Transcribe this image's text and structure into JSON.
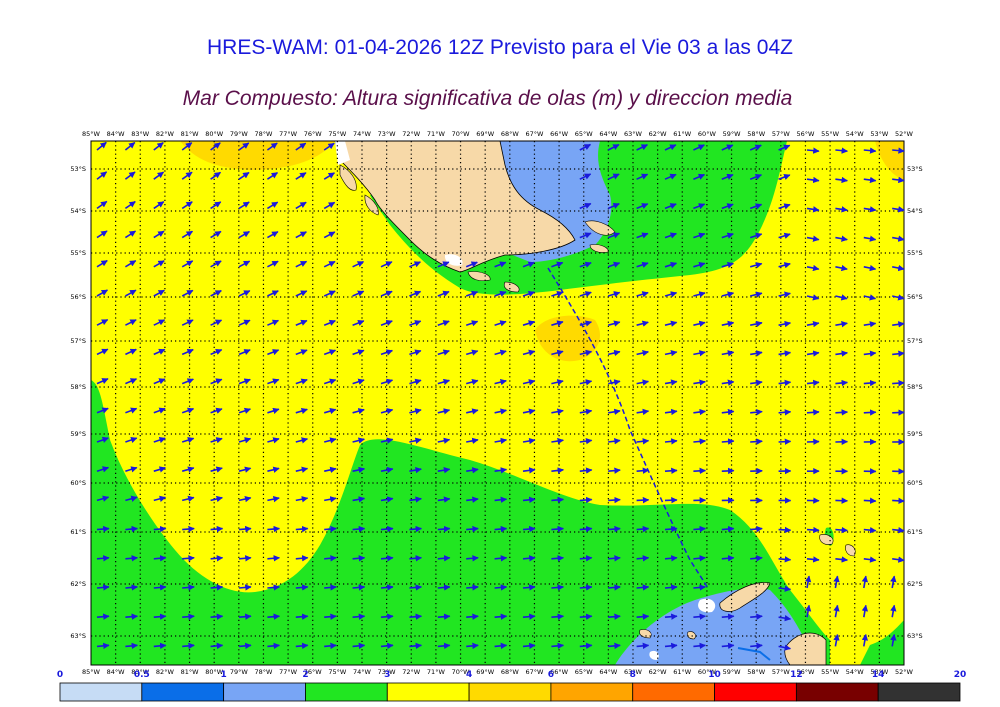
{
  "header": {
    "title": "HRES-WAM: 01-04-2026 12Z Previsto para el Vie 03 a las 04Z",
    "subtitle": "Mar Compuesto: Altura significativa de olas (m) y direccion media"
  },
  "map": {
    "lon_labels": [
      "85°W",
      "84°W",
      "83°W",
      "82°W",
      "81°W",
      "80°W",
      "79°W",
      "78°W",
      "77°W",
      "76°W",
      "75°W",
      "74°W",
      "73°W",
      "72°W",
      "71°W",
      "70°W",
      "69°W",
      "68°W",
      "67°W",
      "66°W",
      "65°W",
      "64°W",
      "63°W",
      "62°W",
      "61°W",
      "60°W",
      "59°W",
      "58°W",
      "57°W",
      "56°W",
      "55°W",
      "54°W",
      "53°W",
      "52°W"
    ],
    "lat_labels": [
      "53°S",
      "54°S",
      "55°S",
      "56°S",
      "57°S",
      "58°S",
      "59°S",
      "60°S",
      "61°S",
      "62°S",
      "63°S"
    ],
    "wave_direction": "north-east to east",
    "colors": {
      "land": "#f7d9a8",
      "coast": "#000000",
      "arrow": "#1a1adc",
      "track": "#1a1adc",
      "grid": "#000000"
    }
  },
  "colorbar": {
    "labels": [
      "0",
      "0.5",
      "1",
      "2",
      "3",
      "4",
      "6",
      "8",
      "10",
      "12",
      "14",
      "20"
    ],
    "colors": [
      "#c6dcf5",
      "#0a6ee8",
      "#78a5f5",
      "#21e621",
      "#ffff00",
      "#ffda00",
      "#ffa500",
      "#ff6a00",
      "#ff0000",
      "#780000",
      "#323232"
    ]
  }
}
